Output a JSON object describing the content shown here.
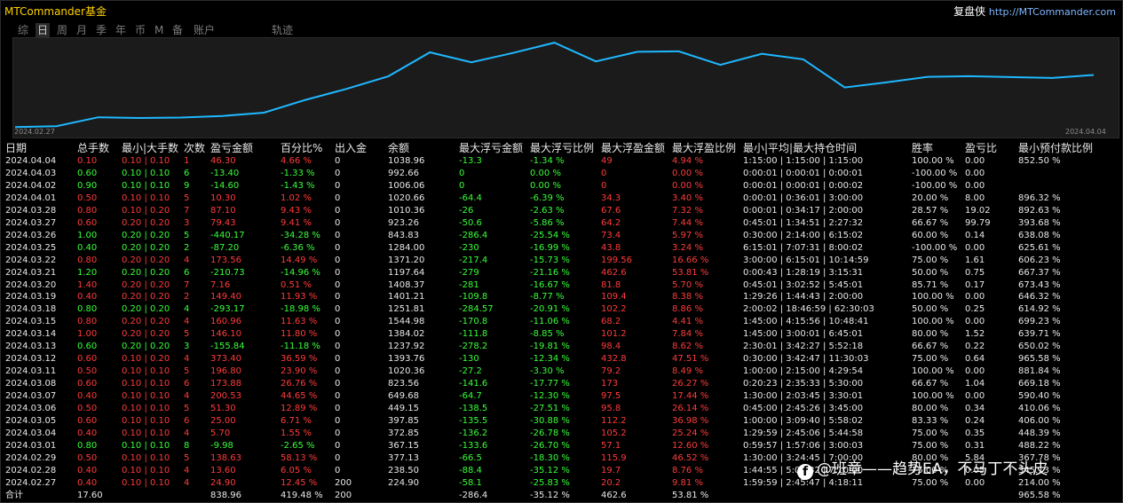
{
  "app": {
    "title": "MTCommander基金",
    "right_label": "复盘侠",
    "right_url": "http://MTCommander.com"
  },
  "tabs": [
    {
      "label": "综"
    },
    {
      "label": "日",
      "active": true
    },
    {
      "label": "周"
    },
    {
      "label": "月"
    },
    {
      "label": "季"
    },
    {
      "label": "年"
    },
    {
      "label": "币"
    },
    {
      "label": "M"
    },
    {
      "label": "备"
    },
    {
      "label": "账户"
    },
    {
      "label": "轨迹"
    }
  ],
  "chart_data": {
    "type": "line",
    "x_start": "2024.02.27",
    "x_end": "2024.04.04",
    "series": [
      {
        "color": "#1fb8ff",
        "values": [
          224.9,
          238.5,
          377.13,
          367.15,
          372.85,
          397.85,
          449.15,
          649.68,
          823.56,
          1020.36,
          1393.76,
          1237.92,
          1384.02,
          1544.98,
          1251.81,
          1401.21,
          1408.37,
          1197.64,
          1371.2,
          1284.0,
          843.83,
          923.26,
          1010.36,
          1020.66,
          1006.06,
          992.66,
          1038.96
        ]
      }
    ],
    "ylim": [
      200,
      1560
    ]
  },
  "table": {
    "headers": [
      "日期",
      "总手数",
      "最小|大手数",
      "次数",
      "盈亏金额",
      "百分比%",
      "出入金",
      "余额",
      "最大浮亏金额",
      "最大浮亏比例",
      "最大浮盈金额",
      "最大浮盈比例",
      "最小|平均|最大持仓时间",
      "胜率",
      "盈亏比",
      "最小预付款比例"
    ],
    "rows": [
      {
        "c": "r",
        "cells": [
          "2024.04.04",
          "0.10",
          "0.10 | 0.10",
          "1",
          "46.30",
          "4.66 %",
          "0",
          "1038.96",
          "-13.3",
          "-1.34 %",
          "49",
          "4.94 %",
          "1:15:00 | 1:15:00 | 1:15:00",
          "100.00 %",
          "0.00",
          "852.50 %"
        ]
      },
      {
        "c": "g",
        "cells": [
          "2024.04.03",
          "0.60",
          "0.10 | 0.10",
          "6",
          "-13.40",
          "-1.33 %",
          "0",
          "992.66",
          "0",
          "0.00 %",
          "0",
          "0.00 %",
          "0:00:01 | 0:00:01 | 0:00:01",
          "-100.00 %",
          "0.00",
          ""
        ]
      },
      {
        "c": "g",
        "cells": [
          "2024.04.02",
          "0.90",
          "0.10 | 0.10",
          "9",
          "-14.60",
          "-1.43 %",
          "0",
          "1006.06",
          "0",
          "0.00 %",
          "0",
          "0.00 %",
          "0:00:01 | 0:00:01 | 0:00:02",
          "-100.00 %",
          "0.00",
          ""
        ]
      },
      {
        "c": "r",
        "cells": [
          "2024.04.01",
          "0.50",
          "0.10 | 0.10",
          "5",
          "10.30",
          "1.02 %",
          "0",
          "1020.66",
          "-64.4",
          "-6.39 %",
          "34.3",
          "3.40 %",
          "0:00:01 | 0:36:01 | 3:00:00",
          "20.00 %",
          "8.00",
          "896.32 %"
        ]
      },
      {
        "c": "r",
        "cells": [
          "2024.03.28",
          "0.80",
          "0.10 | 0.20",
          "7",
          "87.10",
          "9.43 %",
          "0",
          "1010.36",
          "-26",
          "-2.63 %",
          "67.6",
          "7.32 %",
          "0:00:01 | 0:34:17 | 2:00:00",
          "28.57 %",
          "19.02",
          "892.63 %"
        ]
      },
      {
        "c": "r",
        "cells": [
          "2024.03.27",
          "0.60",
          "0.20 | 0.20",
          "3",
          "79.43",
          "9.41 %",
          "0",
          "923.26",
          "-50.6",
          "-5.86 %",
          "64.2",
          "7.44 %",
          "0:45:01 | 1:34:51 | 2:27:32",
          "66.67 %",
          "99.79",
          "393.68 %"
        ]
      },
      {
        "c": "g",
        "cells": [
          "2024.03.26",
          "1.00",
          "0.20 | 0.20",
          "5",
          "-440.17",
          "-34.28 %",
          "0",
          "843.83",
          "-286.4",
          "-25.54 %",
          "73.4",
          "5.97 %",
          "0:30:00 | 2:14:00 | 6:15:02",
          "60.00 %",
          "0.14",
          "638.08 %"
        ]
      },
      {
        "c": "g",
        "cells": [
          "2024.03.25",
          "0.40",
          "0.20 | 0.20",
          "2",
          "-87.20",
          "-6.36 %",
          "0",
          "1284.00",
          "-230",
          "-16.99 %",
          "43.8",
          "3.24 %",
          "6:15:01 | 7:07:31 | 8:00:02",
          "-100.00 %",
          "0.00",
          "625.61 %"
        ]
      },
      {
        "c": "r",
        "cells": [
          "2024.03.22",
          "0.80",
          "0.20 | 0.20",
          "4",
          "173.56",
          "14.49 %",
          "0",
          "1371.20",
          "-217.4",
          "-15.73 %",
          "199.56",
          "16.66 %",
          "3:00:00 | 6:15:01 | 10:14:59",
          "75.00 %",
          "1.61",
          "606.23 %"
        ]
      },
      {
        "c": "g",
        "cells": [
          "2024.03.21",
          "1.20",
          "0.20 | 0.20",
          "6",
          "-210.73",
          "-14.96 %",
          "0",
          "1197.64",
          "-279",
          "-21.16 %",
          "462.6",
          "53.81 %",
          "0:00:43 | 1:28:19 | 3:15:31",
          "50.00 %",
          "0.75",
          "667.37 %"
        ]
      },
      {
        "c": "r",
        "cells": [
          "2024.03.20",
          "1.40",
          "0.20 | 0.20",
          "7",
          "7.16",
          "0.51 %",
          "0",
          "1408.37",
          "-281",
          "-16.67 %",
          "81.8",
          "5.70 %",
          "0:45:01 | 3:02:52 | 5:45:01",
          "85.71 %",
          "0.17",
          "673.43 %"
        ]
      },
      {
        "c": "r",
        "cells": [
          "2024.03.19",
          "0.40",
          "0.20 | 0.20",
          "2",
          "149.40",
          "11.93 %",
          "0",
          "1401.21",
          "-109.8",
          "-8.77 %",
          "109.4",
          "8.38 %",
          "1:29:26 | 1:44:43 | 2:00:00",
          "100.00 %",
          "0.00",
          "646.32 %"
        ]
      },
      {
        "c": "g",
        "cells": [
          "2024.03.18",
          "0.80",
          "0.20 | 0.20",
          "4",
          "-293.17",
          "-18.98 %",
          "0",
          "1251.81",
          "-284.57",
          "-20.91 %",
          "102.2",
          "8.86 %",
          "2:00:02 | 18:46:59 | 62:30:03",
          "50.00 %",
          "0.25",
          "614.92 %"
        ]
      },
      {
        "c": "r",
        "cells": [
          "2024.03.15",
          "0.80",
          "0.20 | 0.20",
          "4",
          "160.96",
          "11.63 %",
          "0",
          "1544.98",
          "-170.8",
          "-11.06 %",
          "68.2",
          "4.41 %",
          "1:45:00 | 4:15:56 | 10:48:41",
          "100.00 %",
          "0.00",
          "699.23 %"
        ]
      },
      {
        "c": "r",
        "cells": [
          "2024.03.14",
          "1.00",
          "0.20 | 0.20",
          "5",
          "146.10",
          "11.80 %",
          "0",
          "1384.02",
          "-111.8",
          "-8.85 %",
          "101.2",
          "7.84 %",
          "1:45:00 | 3:00:01 | 6:45:01",
          "80.00 %",
          "1.52",
          "639.71 %"
        ]
      },
      {
        "c": "g",
        "cells": [
          "2024.03.13",
          "0.60",
          "0.20 | 0.20",
          "3",
          "-155.84",
          "-11.18 %",
          "0",
          "1237.92",
          "-278.2",
          "-19.81 %",
          "98.4",
          "8.62 %",
          "2:30:01 | 3:42:27 | 5:52:18",
          "66.67 %",
          "0.22",
          "650.02 %"
        ]
      },
      {
        "c": "r",
        "cells": [
          "2024.03.12",
          "0.60",
          "0.10 | 0.20",
          "4",
          "373.40",
          "36.59 %",
          "0",
          "1393.76",
          "-130",
          "-12.34 %",
          "432.8",
          "47.51 %",
          "0:30:00 | 3:42:47 | 11:30:03",
          "75.00 %",
          "0.64",
          "965.58 %"
        ]
      },
      {
        "c": "r",
        "cells": [
          "2024.03.11",
          "0.50",
          "0.10 | 0.10",
          "5",
          "196.80",
          "23.90 %",
          "0",
          "1020.36",
          "-27.2",
          "-3.30 %",
          "79.2",
          "8.49 %",
          "1:00:00 | 2:15:00 | 4:29:54",
          "100.00 %",
          "0.00",
          "881.84 %"
        ]
      },
      {
        "c": "r",
        "cells": [
          "2024.03.08",
          "0.60",
          "0.10 | 0.10",
          "6",
          "173.88",
          "26.76 %",
          "0",
          "823.56",
          "-141.6",
          "-17.77 %",
          "173",
          "26.27 %",
          "0:20:23 | 2:35:33 | 5:30:00",
          "66.67 %",
          "1.04",
          "669.18 %"
        ]
      },
      {
        "c": "r",
        "cells": [
          "2024.03.07",
          "0.40",
          "0.10 | 0.10",
          "4",
          "200.53",
          "44.65 %",
          "0",
          "649.68",
          "-64.7",
          "-12.30 %",
          "97.5",
          "17.44 %",
          "1:30:00 | 2:03:45 | 3:30:01",
          "100.00 %",
          "0.00",
          "590.40 %"
        ]
      },
      {
        "c": "r",
        "cells": [
          "2024.03.06",
          "0.50",
          "0.10 | 0.10",
          "5",
          "51.30",
          "12.89 %",
          "0",
          "449.15",
          "-138.5",
          "-27.51 %",
          "95.8",
          "26.14 %",
          "0:45:00 | 2:45:26 | 3:45:00",
          "80.00 %",
          "0.34",
          "410.06 %"
        ]
      },
      {
        "c": "r",
        "cells": [
          "2024.03.05",
          "0.60",
          "0.10 | 0.10",
          "6",
          "25.00",
          "6.71 %",
          "0",
          "397.85",
          "-135.5",
          "-30.88 %",
          "112.2",
          "36.98 %",
          "1:00:00 | 3:09:40 | 5:58:02",
          "83.33 %",
          "0.24",
          "406.00 %"
        ]
      },
      {
        "c": "r",
        "cells": [
          "2024.03.04",
          "0.40",
          "0.10 | 0.10",
          "4",
          "5.70",
          "1.55 %",
          "0",
          "372.85",
          "-136.2",
          "-26.78 %",
          "105.2",
          "25.24 %",
          "1:29:59 | 2:45:06 | 5:44:58",
          "75.00 %",
          "0.35",
          "448.39 %"
        ]
      },
      {
        "c": "g",
        "cells": [
          "2024.03.01",
          "0.80",
          "0.10 | 0.10",
          "8",
          "-9.98",
          "-2.65 %",
          "0",
          "367.15",
          "-133.6",
          "-26.70 %",
          "57.1",
          "12.60 %",
          "0:59:57 | 1:57:06 | 3:00:03",
          "75.00 %",
          "0.31",
          "488.22 %"
        ]
      },
      {
        "c": "r",
        "cells": [
          "2024.02.29",
          "0.50",
          "0.10 | 0.10",
          "5",
          "138.63",
          "58.13 %",
          "0",
          "377.13",
          "-66.5",
          "-18.30 %",
          "115.9",
          "46.52 %",
          "1:30:00 | 3:24:45 | 7:00:00",
          "80.00 %",
          "5.84",
          "367.78 %"
        ]
      },
      {
        "c": "r",
        "cells": [
          "2024.02.28",
          "0.40",
          "0.10 | 0.10",
          "4",
          "13.60",
          "6.05 %",
          "0",
          "238.50",
          "-88.4",
          "-35.12 %",
          "19.7",
          "8.76 %",
          "1:44:55 | 5:09:32 | 7:10:00",
          "75.00 %",
          "0.05",
          "345.13 %"
        ]
      },
      {
        "c": "r",
        "cells": [
          "2024.02.27",
          "0.40",
          "0.10 | 0.10",
          "4",
          "24.90",
          "12.45 %",
          "200",
          "224.90",
          "-58.1",
          "-25.83 %",
          "20.2",
          "9.81 %",
          "1:59:59 | 2:45:47 | 4:18:11",
          "75.00 %",
          "0.00",
          "214.00 %"
        ]
      }
    ],
    "total": [
      "合计",
      "17.60",
      "",
      "",
      "838.96",
      "419.48 %",
      "200",
      "",
      "-286.4",
      "-35.12 %",
      "462.6",
      "53.81 %",
      "",
      "",
      "",
      "965.58 %"
    ]
  },
  "watermark": "@班章——趋势EA，不马丁不头皮",
  "colors": {
    "profit": "#ff3b3b",
    "loss": "#39ff39",
    "line": "#1fb8ff"
  }
}
